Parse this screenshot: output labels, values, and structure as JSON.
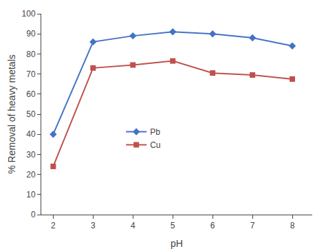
{
  "chart_data": {
    "type": "line",
    "xlabel": "pH",
    "ylabel": "% Removal of heavy metals",
    "x": [
      2,
      3,
      4,
      5,
      6,
      7,
      8
    ],
    "series": [
      {
        "name": "Pb",
        "color": "#4472C4",
        "marker": "diamond",
        "values": [
          40,
          86,
          89,
          91,
          90,
          88,
          84
        ]
      },
      {
        "name": "Cu",
        "color": "#C0504D",
        "marker": "square",
        "values": [
          24,
          73,
          74.5,
          76.5,
          70.5,
          69.5,
          67.5
        ]
      }
    ],
    "xlim": [
      1.7,
      8.5
    ],
    "ylim": [
      0,
      100
    ],
    "xticks": [
      2,
      3,
      4,
      5,
      6,
      7,
      8
    ],
    "yticks": [
      0,
      10,
      20,
      30,
      40,
      50,
      60,
      70,
      80,
      90,
      100
    ],
    "grid": false,
    "legend": "center left"
  }
}
